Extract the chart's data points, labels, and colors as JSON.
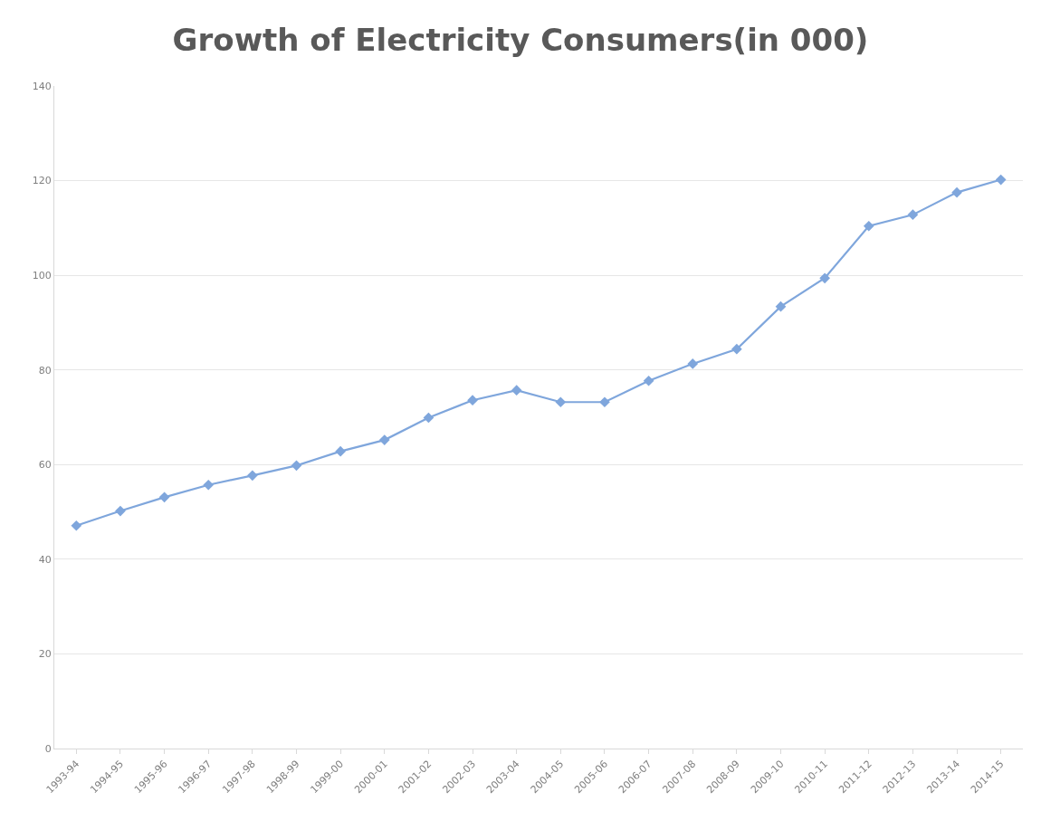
{
  "chart_data": {
    "type": "line",
    "title": "Growth of Electricity Consumers(in 000)",
    "categories": [
      "1993-94",
      "1994-95",
      "1995-96",
      "1996-97",
      "1997-98",
      "1998-99",
      "1999-00",
      "2000-01",
      "2001-02",
      "2002-03",
      "2003-04",
      "2004-05",
      "2005-06",
      "2006-07",
      "2007-08",
      "2008-09",
      "2009-10",
      "2010-11",
      "2011-12",
      "2012-13",
      "2013-14",
      "2014-15"
    ],
    "series": [
      {
        "color": "#7fa6dc",
        "values": [
          47.1,
          50.2,
          53.1,
          55.7,
          57.7,
          59.8,
          62.8,
          65.2,
          69.9,
          73.6,
          75.7,
          73.2,
          73.2,
          77.7,
          81.3,
          84.4,
          93.4,
          99.4,
          110.4,
          112.8,
          117.5,
          120.2
        ]
      }
    ],
    "ylim": [
      0,
      140
    ],
    "yticks": [
      0,
      20,
      40,
      60,
      80,
      100,
      120,
      140
    ],
    "grid": "y",
    "marker": "diamond",
    "line_style": "solid"
  }
}
